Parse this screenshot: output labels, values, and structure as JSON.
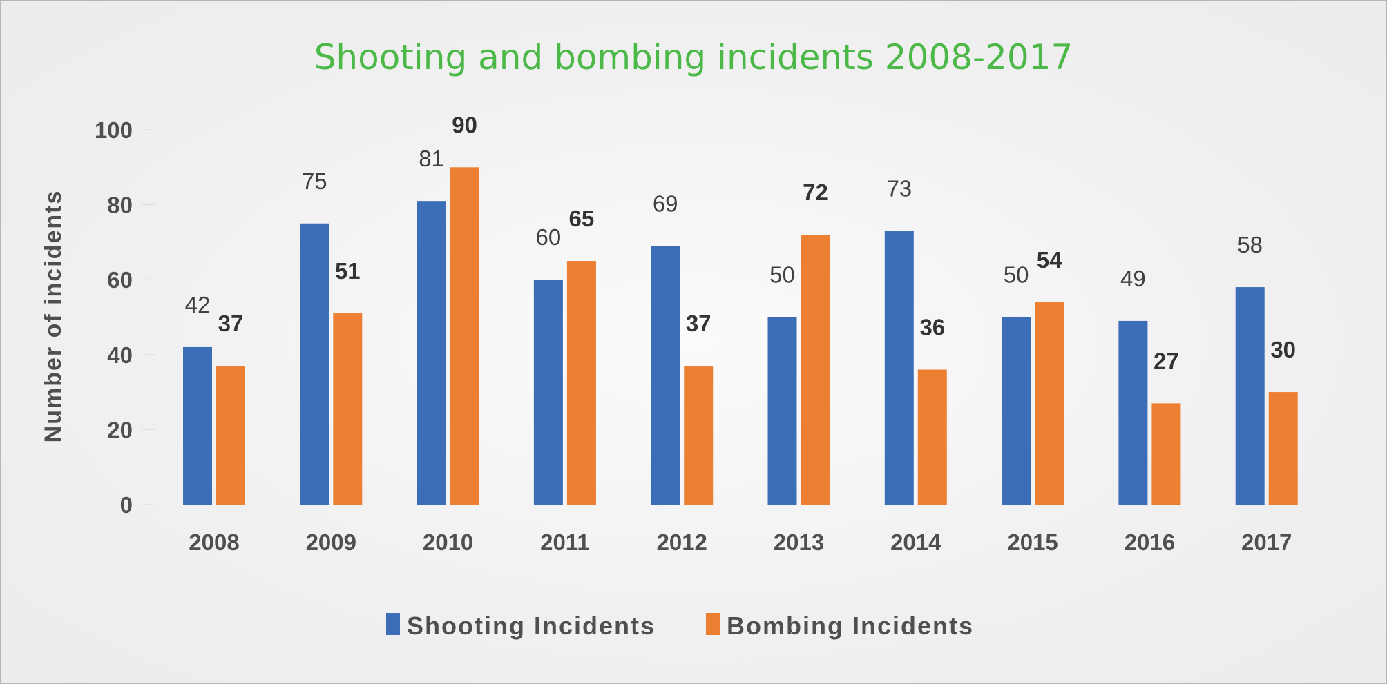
{
  "chart_data": {
    "type": "bar",
    "title": "Shooting and bombing incidents 2008-2017",
    "xlabel": "",
    "ylabel": "Number of incidents",
    "ylim": [
      0,
      100
    ],
    "yticks": [
      "0",
      "20",
      "40",
      "60",
      "80",
      "100"
    ],
    "grid": false,
    "legend_position": "bottom",
    "categories": [
      "2008",
      "2009",
      "2010",
      "2011",
      "2012",
      "2013",
      "2014",
      "2015",
      "2016",
      "2017"
    ],
    "series": [
      {
        "name": "Shooting Incidents",
        "color": "#3c6eb7",
        "values": [
          42,
          75,
          81,
          60,
          69,
          50,
          73,
          50,
          49,
          58
        ]
      },
      {
        "name": "Bombing Incidents",
        "color": "#ed7f32",
        "values": [
          37,
          51,
          90,
          65,
          37,
          72,
          36,
          54,
          27,
          30
        ]
      }
    ]
  }
}
